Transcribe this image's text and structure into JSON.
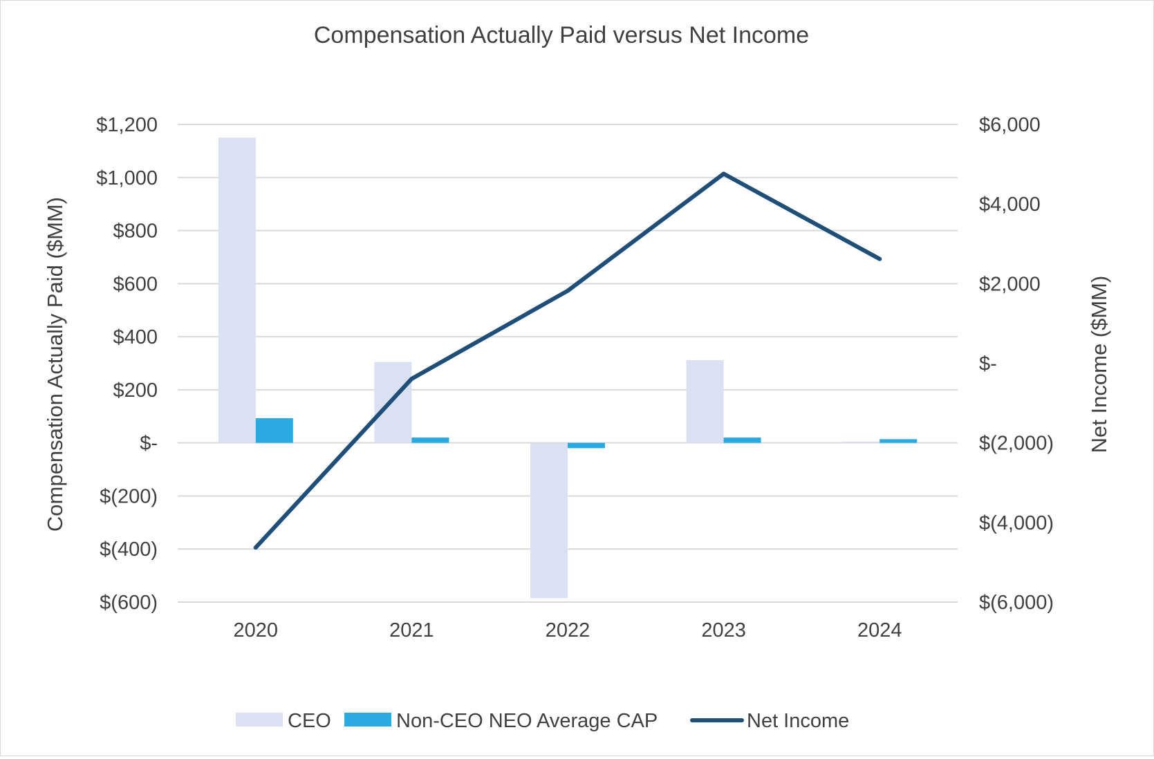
{
  "chart_data": {
    "type": "bar",
    "title": "Compensation Actually Paid versus Net Income",
    "categories": [
      "2020",
      "2021",
      "2022",
      "2023",
      "2024"
    ],
    "series": [
      {
        "name": "CEO",
        "kind": "bar",
        "axis": "left",
        "color": "#d9e1f2",
        "values": [
          1150,
          305,
          -585,
          312,
          5
        ]
      },
      {
        "name": "Non-CEO NEO Average CAP",
        "kind": "bar",
        "axis": "left",
        "color": "#29abe2",
        "values": [
          93,
          20,
          -20,
          20,
          14
        ]
      },
      {
        "name": "Net Income",
        "kind": "line",
        "axis": "right",
        "color": "#1f4e79",
        "values": [
          -4630,
          -390,
          1820,
          4760,
          2620
        ]
      }
    ],
    "ylabel": "Compensation Actually Paid ($MM)",
    "y2label": "Net Income ($MM)",
    "ylim": [
      -600,
      1200
    ],
    "y2lim": [
      -6000,
      6000
    ],
    "yticks": [
      {
        "value": 1200,
        "label": "$1,200"
      },
      {
        "value": 1000,
        "label": "$1,000"
      },
      {
        "value": 800,
        "label": "$800"
      },
      {
        "value": 600,
        "label": "$600"
      },
      {
        "value": 400,
        "label": "$400"
      },
      {
        "value": 200,
        "label": "$200"
      },
      {
        "value": 0,
        "label": "$-"
      },
      {
        "value": -200,
        "label": "$(200)"
      },
      {
        "value": -400,
        "label": "$(400)"
      },
      {
        "value": -600,
        "label": "$(600)"
      }
    ],
    "y2ticks": [
      {
        "value": 6000,
        "label": "$6,000"
      },
      {
        "value": 4000,
        "label": "$4,000"
      },
      {
        "value": 2000,
        "label": "$2,000"
      },
      {
        "value": 0,
        "label": "$-"
      },
      {
        "value": -2000,
        "label": "$(2,000)"
      },
      {
        "value": -4000,
        "label": "$(4,000)"
      },
      {
        "value": -6000,
        "label": "$(6,000)"
      }
    ],
    "grid": true,
    "legend_position": "bottom",
    "colors": {
      "gridline": "#d9d9d9",
      "text": "#404040"
    }
  }
}
